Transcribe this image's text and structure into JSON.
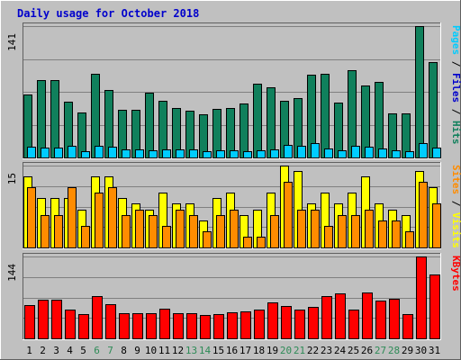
{
  "chart_data": {
    "type": "bar",
    "title": "Daily usage for October 2018",
    "colors": {
      "background": "#c0c0c0",
      "title": "#0000cc",
      "pages": "#10805c",
      "files": "#00ccff",
      "hits": "#10805c",
      "visits": "#ffff00",
      "sites": "#ff8c00",
      "kbytes": "#ff0000",
      "weekend_label": "#2e8b57",
      "weekday_label": "#000000"
    },
    "days": [
      "1",
      "2",
      "3",
      "4",
      "5",
      "6",
      "7",
      "8",
      "9",
      "10",
      "11",
      "12",
      "13",
      "14",
      "15",
      "16",
      "17",
      "18",
      "19",
      "20",
      "21",
      "22",
      "23",
      "24",
      "25",
      "26",
      "27",
      "28",
      "29",
      "30",
      "31"
    ],
    "weekend_days": [
      6,
      7,
      13,
      14,
      20,
      21,
      27,
      28
    ],
    "panels": [
      {
        "key": "top",
        "max_label": "141",
        "ymax": 141,
        "legend": [
          {
            "text": "Pages",
            "color": "#00ccff"
          },
          {
            "text": " / ",
            "color": "#000000"
          },
          {
            "text": "Files",
            "color": "#0000cc"
          },
          {
            "text": " / ",
            "color": "#000000"
          },
          {
            "text": "Hits",
            "color": "#10805c"
          }
        ],
        "series": [
          {
            "name": "Hits",
            "color": "#10805c",
            "offset": "back",
            "values": [
              68,
              83,
              83,
              60,
              48,
              90,
              72,
              51,
              51,
              70,
              61,
              53,
              50,
              46,
              52,
              53,
              58,
              79,
              75,
              61,
              64,
              89,
              90,
              59,
              94,
              77,
              81,
              47,
              47,
              141,
              102
            ]
          },
          {
            "name": "Files",
            "color": "#00ccff",
            "offset": "front",
            "values": [
              12,
              11,
              11,
              13,
              7,
              13,
              12,
              9,
              9,
              8,
              9,
              9,
              9,
              7,
              8,
              8,
              7,
              8,
              9,
              14,
              13,
              15,
              10,
              8,
              13,
              12,
              10,
              8,
              7,
              15,
              11
            ]
          }
        ]
      },
      {
        "key": "middle",
        "max_label": "15",
        "ymax": 15,
        "legend": [
          {
            "text": "Sites",
            "color": "#ff8c00"
          },
          {
            "text": " / ",
            "color": "#000000"
          },
          {
            "text": "Visits",
            "color": "#ffff00"
          }
        ],
        "series": [
          {
            "name": "Visits",
            "color": "#ffff00",
            "offset": "back",
            "values": [
              13,
              9,
              9,
              9,
              7,
              13,
              13,
              9,
              8,
              7,
              10,
              8,
              8,
              5,
              9,
              10,
              6,
              7,
              10,
              15,
              14,
              8,
              10,
              8,
              10,
              13,
              8,
              7,
              6,
              14,
              11
            ]
          },
          {
            "name": "Sites",
            "color": "#ff8c00",
            "offset": "front",
            "values": [
              11,
              6,
              6,
              11,
              4,
              10,
              11,
              6,
              7,
              6,
              4,
              7,
              6,
              3,
              6,
              7,
              2,
              2,
              6,
              12,
              7,
              7,
              4,
              6,
              6,
              7,
              5,
              5,
              3,
              12,
              8
            ]
          }
        ]
      },
      {
        "key": "bottom",
        "max_label": "144",
        "ymax": 144,
        "legend": [
          {
            "text": "KBytes",
            "color": "#ff0000"
          }
        ],
        "series": [
          {
            "name": "KBytes",
            "color": "#ff0000",
            "offset": "center",
            "values": [
              58,
              68,
              68,
              51,
              42,
              75,
              60,
              44,
              44,
              44,
              53,
              45,
              44,
              41,
              43,
              46,
              47,
              50,
              63,
              57,
              51,
              55,
              75,
              79,
              51,
              80,
              67,
              70,
              43,
              144,
              112
            ]
          }
        ]
      }
    ]
  }
}
